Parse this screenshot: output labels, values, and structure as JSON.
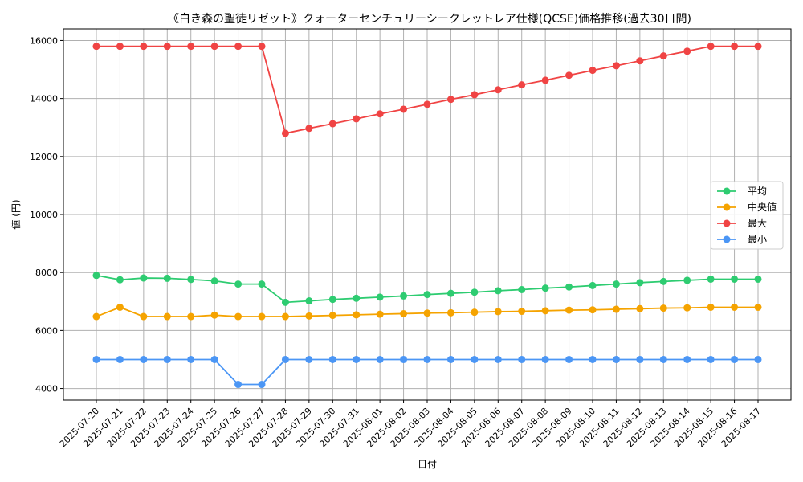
{
  "chart_data": {
    "type": "line",
    "title": "《白き森の聖徒リゼット》クォーターセンチュリーシークレットレア仕様(QCSE)価格推移(過去30日間)",
    "xlabel": "日付",
    "ylabel": "値 (円)",
    "ylim": [
      3600,
      16400
    ],
    "yticks": [
      4000,
      6000,
      8000,
      10000,
      12000,
      14000,
      16000
    ],
    "grid": true,
    "legend_position": "right",
    "x": [
      "2025-07-20",
      "2025-07-21",
      "2025-07-22",
      "2025-07-23",
      "2025-07-24",
      "2025-07-25",
      "2025-07-26",
      "2025-07-27",
      "2025-07-28",
      "2025-07-29",
      "2025-07-30",
      "2025-07-31",
      "2025-08-01",
      "2025-08-02",
      "2025-08-03",
      "2025-08-04",
      "2025-08-05",
      "2025-08-06",
      "2025-08-07",
      "2025-08-08",
      "2025-08-09",
      "2025-08-10",
      "2025-08-11",
      "2025-08-12",
      "2025-08-13",
      "2025-08-14",
      "2025-08-15",
      "2025-08-16",
      "2025-08-17"
    ],
    "series": [
      {
        "name": "平均",
        "color": "#2ecc71",
        "values": [
          7900,
          7750,
          7810,
          7800,
          7760,
          7710,
          7600,
          7600,
          6970,
          7020,
          7070,
          7110,
          7150,
          7190,
          7240,
          7280,
          7320,
          7370,
          7410,
          7460,
          7500,
          7550,
          7600,
          7650,
          7690,
          7730,
          7770,
          7770,
          7770
        ]
      },
      {
        "name": "中央値",
        "color": "#f5a300",
        "values": [
          6480,
          6800,
          6480,
          6480,
          6480,
          6530,
          6480,
          6480,
          6480,
          6500,
          6520,
          6540,
          6560,
          6580,
          6600,
          6610,
          6630,
          6650,
          6660,
          6680,
          6700,
          6710,
          6730,
          6750,
          6770,
          6780,
          6800,
          6800,
          6800
        ]
      },
      {
        "name": "最大",
        "color": "#f04444",
        "values": [
          15800,
          15800,
          15800,
          15800,
          15800,
          15800,
          15800,
          15800,
          12800,
          12970,
          13130,
          13300,
          13470,
          13630,
          13800,
          13970,
          14130,
          14300,
          14470,
          14630,
          14800,
          14970,
          15130,
          15300,
          15470,
          15630,
          15800,
          15800,
          15800
        ]
      },
      {
        "name": "最小",
        "color": "#4b96f5",
        "values": [
          5000,
          5000,
          5000,
          5000,
          5000,
          5000,
          4140,
          4140,
          5000,
          5000,
          5000,
          5000,
          5000,
          5000,
          5000,
          5000,
          5000,
          5000,
          5000,
          5000,
          5000,
          5000,
          5000,
          5000,
          5000,
          5000,
          5000,
          5000,
          5000
        ]
      }
    ]
  }
}
